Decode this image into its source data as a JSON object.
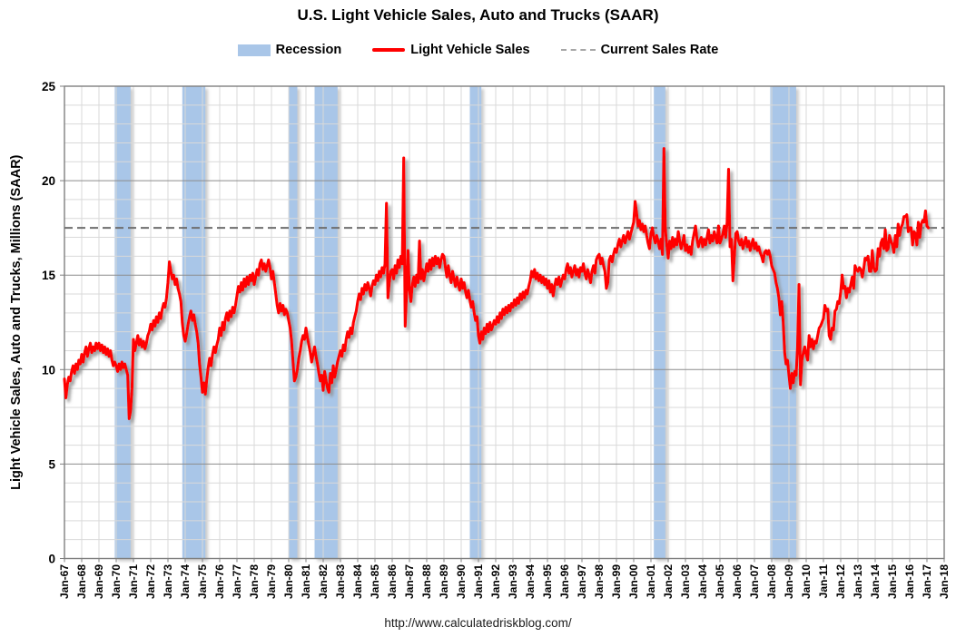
{
  "title": "U.S. Light Vehicle Sales, Auto and Trucks (SAAR)",
  "legend": {
    "recession": "Recession",
    "sales": "Light Vehicle Sales",
    "rate": "Current Sales Rate"
  },
  "footer_url": "http://www.calculatedriskblog.com/",
  "colors": {
    "line": "#FF0000",
    "recession_band": "#A9C6E8",
    "dashed_line": "#6E6E6E",
    "legend_dash": "#A6A6A6",
    "grid_minor": "#D9D9D9",
    "grid_major": "#8C8C8C",
    "axis_frame": "#7F7F7F",
    "text": "#000000"
  },
  "chart_data": {
    "type": "line",
    "title": "U.S. Light Vehicle Sales, Auto and Trucks (SAAR)",
    "xlabel": "",
    "ylabel": "Light Vehicle Sales, Auto and Trucks, Millions (SAAR)",
    "ylim": [
      0,
      25
    ],
    "y_ticks": [
      0,
      5,
      10,
      15,
      20,
      25
    ],
    "x_start_year": 1967,
    "x_end_year": 2018,
    "x_ticks": [
      "Jan-67",
      "Jan-68",
      "Jan-69",
      "Jan-70",
      "Jan-71",
      "Jan-72",
      "Jan-73",
      "Jan-74",
      "Jan-75",
      "Jan-76",
      "Jan-77",
      "Jan-78",
      "Jan-79",
      "Jan-80",
      "Jan-81",
      "Jan-82",
      "Jan-83",
      "Jan-84",
      "Jan-85",
      "Jan-86",
      "Jan-87",
      "Jan-88",
      "Jan-89",
      "Jan-90",
      "Jan-91",
      "Jan-92",
      "Jan-93",
      "Jan-94",
      "Jan-95",
      "Jan-96",
      "Jan-97",
      "Jan-98",
      "Jan-99",
      "Jan-00",
      "Jan-01",
      "Jan-02",
      "Jan-03",
      "Jan-04",
      "Jan-05",
      "Jan-06",
      "Jan-07",
      "Jan-08",
      "Jan-09",
      "Jan-10",
      "Jan-11",
      "Jan-12",
      "Jan-13",
      "Jan-14",
      "Jan-15",
      "Jan-16",
      "Jan-17",
      "Jan-18"
    ],
    "grid": true,
    "legend_position": "top",
    "current_sales_rate": 17.5,
    "recessions": [
      {
        "start": 1969.917,
        "end": 1970.833
      },
      {
        "start": 1973.833,
        "end": 1975.167
      },
      {
        "start": 1980.0,
        "end": 1980.5
      },
      {
        "start": 1981.5,
        "end": 1982.833
      },
      {
        "start": 1990.5,
        "end": 1991.167
      },
      {
        "start": 2001.167,
        "end": 2001.833
      },
      {
        "start": 2007.917,
        "end": 2009.417
      }
    ],
    "series": [
      {
        "name": "Light Vehicle Sales",
        "start": "1967-01",
        "frequency": "monthly",
        "values": [
          9.5,
          8.5,
          9.2,
          9.6,
          9.4,
          9.9,
          10.2,
          9.8,
          10.3,
          10.0,
          10.5,
          10.3,
          10.8,
          10.4,
          10.9,
          11.2,
          10.7,
          11.1,
          11.4,
          10.9,
          11.2,
          11.0,
          11.4,
          11.1,
          11.4,
          11.0,
          11.3,
          10.9,
          11.2,
          10.8,
          11.1,
          10.7,
          11.0,
          10.5,
          10.2,
          10.4,
          10.2,
          9.9,
          10.3,
          10.0,
          10.4,
          10.1,
          10.3,
          10.0,
          9.7,
          7.4,
          7.8,
          9.0,
          11.6,
          11.0,
          11.4,
          11.8,
          11.3,
          11.6,
          11.2,
          11.5,
          11.1,
          11.4,
          11.8,
          12.0,
          12.4,
          12.1,
          12.6,
          12.3,
          12.8,
          12.5,
          13.0,
          12.7,
          13.2,
          13.5,
          13.3,
          13.8,
          14.6,
          15.7,
          15.2,
          14.8,
          15.0,
          14.5,
          14.8,
          14.3,
          14.0,
          13.6,
          12.5,
          11.8,
          11.5,
          11.9,
          12.4,
          12.8,
          13.1,
          12.6,
          12.9,
          12.4,
          12.0,
          11.4,
          10.3,
          9.6,
          8.8,
          9.3,
          8.7,
          9.5,
          10.1,
          10.6,
          10.2,
          10.8,
          11.2,
          10.9,
          11.3,
          11.6,
          12.2,
          11.8,
          12.5,
          12.1,
          12.7,
          13.0,
          12.6,
          13.1,
          12.8,
          13.3,
          13.0,
          13.4,
          13.9,
          14.4,
          14.1,
          14.6,
          14.2,
          14.8,
          14.4,
          14.9,
          14.5,
          15.0,
          14.7,
          15.1,
          14.5,
          14.9,
          15.3,
          15.0,
          15.6,
          15.8,
          15.3,
          15.6,
          15.2,
          15.5,
          15.8,
          15.4,
          14.8,
          15.2,
          14.6,
          14.0,
          13.4,
          13.0,
          13.5,
          13.1,
          13.4,
          12.9,
          13.2,
          13.0,
          12.6,
          12.2,
          11.5,
          10.4,
          9.4,
          9.6,
          10.0,
          10.6,
          11.0,
          11.5,
          11.8,
          11.6,
          12.2,
          11.7,
          11.3,
          10.9,
          10.4,
          10.8,
          11.2,
          10.7,
          10.3,
          9.8,
          9.4,
          9.7,
          8.9,
          9.9,
          9.4,
          9.0,
          8.8,
          9.8,
          9.3,
          10.2,
          9.6,
          10.0,
          10.4,
          10.7,
          11.0,
          10.7,
          11.3,
          11.0,
          11.6,
          12.0,
          11.7,
          12.2,
          11.9,
          12.5,
          12.8,
          13.1,
          13.6,
          14.0,
          13.7,
          14.3,
          14.0,
          14.5,
          14.2,
          14.6,
          14.3,
          13.9,
          14.4,
          14.7,
          14.5,
          15.0,
          14.7,
          15.2,
          14.9,
          15.4,
          15.1,
          15.6,
          18.8,
          13.8,
          14.6,
          15.2,
          15.3,
          14.8,
          15.5,
          15.1,
          15.8,
          15.4,
          16.0,
          15.6,
          21.2,
          12.3,
          14.0,
          16.3,
          14.2,
          13.6,
          14.5,
          14.9,
          14.4,
          15.0,
          14.6,
          16.8,
          14.8,
          15.3,
          14.7,
          15.1,
          15.6,
          15.2,
          15.8,
          15.3,
          15.9,
          15.5,
          16.0,
          15.6,
          15.9,
          15.4,
          15.8,
          16.1,
          16.0,
          15.4,
          14.9,
          15.5,
          15.0,
          14.6,
          15.2,
          14.8,
          14.4,
          14.9,
          14.5,
          14.2,
          14.8,
          14.3,
          14.6,
          14.1,
          13.8,
          14.2,
          13.7,
          13.3,
          13.6,
          13.0,
          12.6,
          12.8,
          11.8,
          11.4,
          12.0,
          11.6,
          12.2,
          11.9,
          12.4,
          12.0,
          12.5,
          12.1,
          12.3,
          12.6,
          12.4,
          12.8,
          12.5,
          13.0,
          12.7,
          13.2,
          12.9,
          13.3,
          13.0,
          13.4,
          13.1,
          13.5,
          13.3,
          13.7,
          13.4,
          13.8,
          13.5,
          14.0,
          13.7,
          14.1,
          13.8,
          14.2,
          14.0,
          14.4,
          14.7,
          15.2,
          14.9,
          15.3,
          14.8,
          15.1,
          14.7,
          15.0,
          14.6,
          14.9,
          14.5,
          14.8,
          14.3,
          14.7,
          14.1,
          14.5,
          13.9,
          14.4,
          14.8,
          14.5,
          14.9,
          14.4,
          14.7,
          15.0,
          14.8,
          15.3,
          15.6,
          15.1,
          15.4,
          14.9,
          15.2,
          15.5,
          15.0,
          15.3,
          14.9,
          15.4,
          15.2,
          15.6,
          15.1,
          14.8,
          15.3,
          15.0,
          14.6,
          15.2,
          15.5,
          15.1,
          15.8,
          16.0,
          16.1,
          15.6,
          15.9,
          15.5,
          15.2,
          14.3,
          14.6,
          15.8,
          16.0,
          15.7,
          16.1,
          16.4,
          16.2,
          16.6,
          16.9,
          16.5,
          16.8,
          17.1,
          16.7,
          17.0,
          17.3,
          16.9,
          17.2,
          17.5,
          17.8,
          18.9,
          18.3,
          17.6,
          17.9,
          17.4,
          17.7,
          17.3,
          17.6,
          17.1,
          16.7,
          16.4,
          17.2,
          17.5,
          17.0,
          16.7,
          17.1,
          16.8,
          16.4,
          16.9,
          16.1,
          21.7,
          17.5,
          16.6,
          15.9,
          16.8,
          16.4,
          17.0,
          16.5,
          16.9,
          16.6,
          17.3,
          16.8,
          16.4,
          16.7,
          17.1,
          16.3,
          16.6,
          16.2,
          16.5,
          16.1,
          16.8,
          17.2,
          17.6,
          16.9,
          16.5,
          16.8,
          17.0,
          16.5,
          16.9,
          16.6,
          17.0,
          17.4,
          16.7,
          17.1,
          16.8,
          17.3,
          17.0,
          16.7,
          17.6,
          16.7,
          16.9,
          17.2,
          17.6,
          17.0,
          17.8,
          20.6,
          16.5,
          16.9,
          14.7,
          15.9,
          17.2,
          17.3,
          16.8,
          16.6,
          16.9,
          16.4,
          16.7,
          17.0,
          16.5,
          16.8,
          16.3,
          16.6,
          16.9,
          16.4,
          16.7,
          16.3,
          16.5,
          16.2,
          16.0,
          15.7,
          16.2,
          16.3,
          16.1,
          16.3,
          16.0,
          15.5,
          15.3,
          15.1,
          14.6,
          14.3,
          13.8,
          12.9,
          13.6,
          12.5,
          10.9,
          10.3,
          10.5,
          9.7,
          9.0,
          9.8,
          9.3,
          9.9,
          9.7,
          11.2,
          14.5,
          9.2,
          10.5,
          10.9,
          11.2,
          10.8,
          10.5,
          11.8,
          11.2,
          11.6,
          11.1,
          11.5,
          11.4,
          11.8,
          12.2,
          12.3,
          12.5,
          12.7,
          13.4,
          13.1,
          13.2,
          11.8,
          11.6,
          12.2,
          12.1,
          13.1,
          13.2,
          13.6,
          13.5,
          14.1,
          15.0,
          14.3,
          14.4,
          13.8,
          14.3,
          14.1,
          14.5,
          14.9,
          14.3,
          15.5,
          15.3,
          15.2,
          15.4,
          15.3,
          14.9,
          15.3,
          15.9,
          15.8,
          16.0,
          15.2,
          15.2,
          16.3,
          15.4,
          15.2,
          15.3,
          16.4,
          16.0,
          16.7,
          16.9,
          16.4,
          17.4,
          16.3,
          16.4,
          17.1,
          16.8,
          16.6,
          16.2,
          17.1,
          16.5,
          17.7,
          17.1,
          17.5,
          17.7,
          18.1,
          18.1,
          18.2,
          17.3,
          17.5,
          17.5,
          16.6,
          17.3,
          17.2,
          16.6,
          17.8,
          17.0,
          17.7,
          17.9,
          17.8,
          18.4,
          17.6,
          17.5
        ]
      }
    ]
  }
}
